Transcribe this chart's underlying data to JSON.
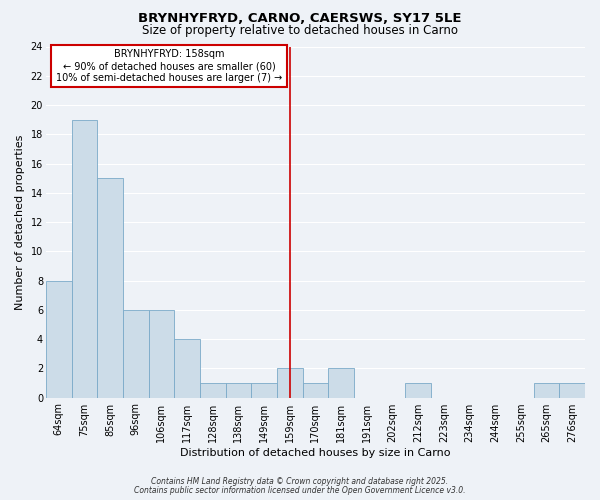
{
  "title": "BRYNHYFRYD, CARNO, CAERSWS, SY17 5LE",
  "subtitle": "Size of property relative to detached houses in Carno",
  "xlabel": "Distribution of detached houses by size in Carno",
  "ylabel": "Number of detached properties",
  "bin_labels": [
    "64sqm",
    "75sqm",
    "85sqm",
    "96sqm",
    "106sqm",
    "117sqm",
    "128sqm",
    "138sqm",
    "149sqm",
    "159sqm",
    "170sqm",
    "181sqm",
    "191sqm",
    "202sqm",
    "212sqm",
    "223sqm",
    "234sqm",
    "244sqm",
    "255sqm",
    "265sqm",
    "276sqm"
  ],
  "bar_heights": [
    8,
    19,
    15,
    6,
    6,
    4,
    1,
    1,
    1,
    2,
    1,
    2,
    0,
    0,
    1,
    0,
    0,
    0,
    0,
    1,
    1
  ],
  "bar_color": "#ccdce8",
  "bar_edge_color": "#7aaac8",
  "ylim": [
    0,
    24
  ],
  "yticks": [
    0,
    2,
    4,
    6,
    8,
    10,
    12,
    14,
    16,
    18,
    20,
    22,
    24
  ],
  "vline_x_index": 9,
  "vline_color": "#cc0000",
  "annotation_title": "BRYNHYFRYD: 158sqm",
  "annotation_line1": "← 90% of detached houses are smaller (60)",
  "annotation_line2": "10% of semi-detached houses are larger (7) →",
  "annotation_box_color": "#ffffff",
  "annotation_box_edge": "#cc0000",
  "footer1": "Contains HM Land Registry data © Crown copyright and database right 2025.",
  "footer2": "Contains public sector information licensed under the Open Government Licence v3.0.",
  "bg_color": "#eef2f7",
  "grid_color": "#ffffff",
  "title_fontsize": 9.5,
  "subtitle_fontsize": 8.5,
  "axis_label_fontsize": 8,
  "tick_fontsize": 7,
  "annotation_fontsize": 7,
  "footer_fontsize": 5.5
}
